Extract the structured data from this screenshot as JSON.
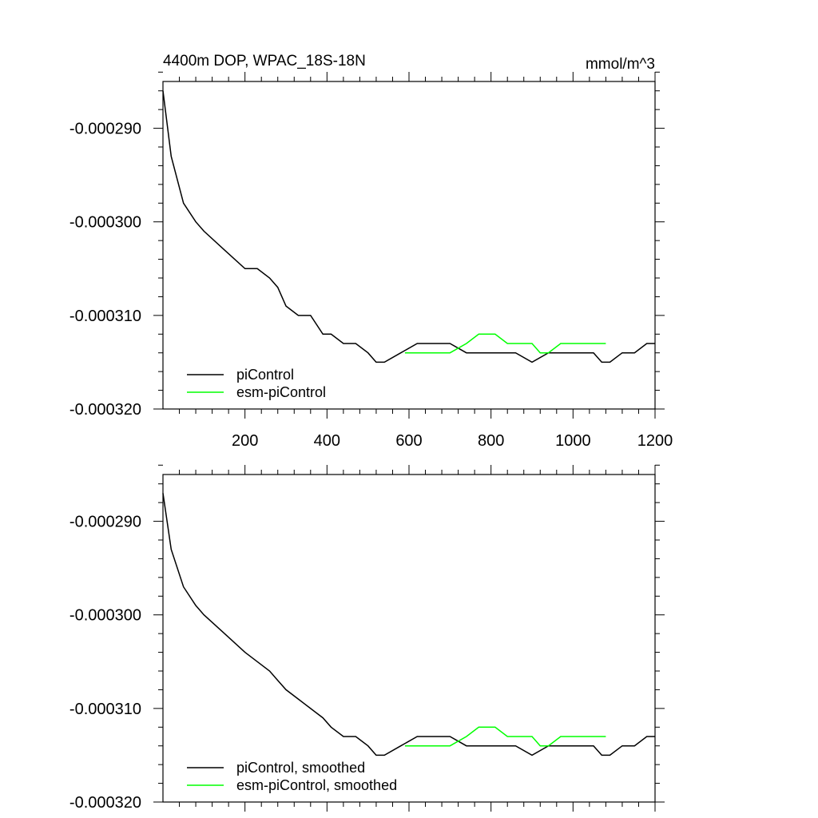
{
  "chart_data": [
    {
      "type": "line",
      "title": "4400m DOP, WPAC_18S-18N",
      "units": "mmol/m^3",
      "xlim": [
        0,
        1200
      ],
      "ylim": [
        -0.00032,
        -0.000285
      ],
      "x_ticks": [
        200,
        400,
        600,
        800,
        1000,
        1200
      ],
      "x_tick_labels": [
        "200",
        "400",
        "600",
        "800",
        "1000",
        "1200"
      ],
      "y_ticks": [
        -0.00029,
        -0.0003,
        -0.00031,
        -0.00032
      ],
      "y_tick_labels": [
        "-0.000290",
        "-0.000300",
        "-0.000310",
        "-0.000320"
      ],
      "legend": [
        "piControl",
        "esm-piControl"
      ],
      "series": [
        {
          "name": "piControl",
          "color": "#000000",
          "x": [
            0,
            20,
            50,
            80,
            100,
            150,
            200,
            230,
            260,
            280,
            300,
            330,
            360,
            390,
            410,
            440,
            470,
            500,
            520,
            540,
            580,
            620,
            660,
            700,
            740,
            780,
            820,
            860,
            900,
            940,
            980,
            1020,
            1050,
            1070,
            1090,
            1120,
            1150,
            1180,
            1200
          ],
          "values": [
            -0.000286,
            -0.000293,
            -0.000298,
            -0.0003,
            -0.000301,
            -0.000303,
            -0.000305,
            -0.000305,
            -0.000306,
            -0.000307,
            -0.000309,
            -0.00031,
            -0.00031,
            -0.000312,
            -0.000312,
            -0.000313,
            -0.000313,
            -0.000314,
            -0.000315,
            -0.000315,
            -0.000314,
            -0.000313,
            -0.000313,
            -0.000313,
            -0.000314,
            -0.000314,
            -0.000314,
            -0.000314,
            -0.000315,
            -0.000314,
            -0.000314,
            -0.000314,
            -0.000314,
            -0.000315,
            -0.000315,
            -0.000314,
            -0.000314,
            -0.000313,
            -0.000313
          ]
        },
        {
          "name": "esm-piControl",
          "color": "#00ff00",
          "x": [
            590,
            620,
            660,
            700,
            740,
            770,
            790,
            810,
            840,
            870,
            900,
            920,
            940,
            970,
            1000,
            1030,
            1060,
            1080
          ],
          "values": [
            -0.000314,
            -0.000314,
            -0.000314,
            -0.000314,
            -0.000313,
            -0.000312,
            -0.000312,
            -0.000312,
            -0.000313,
            -0.000313,
            -0.000313,
            -0.000314,
            -0.000314,
            -0.000313,
            -0.000313,
            -0.000313,
            -0.000313,
            -0.000313
          ]
        }
      ]
    },
    {
      "type": "line",
      "xlim": [
        0,
        1200
      ],
      "ylim": [
        -0.00032,
        -0.000285
      ],
      "x_ticks": [
        200,
        400,
        600,
        800,
        1000,
        1200
      ],
      "y_ticks": [
        -0.00029,
        -0.0003,
        -0.00031,
        -0.00032
      ],
      "y_tick_labels": [
        "-0.000290",
        "-0.000300",
        "-0.000310",
        "-0.000320"
      ],
      "legend": [
        "piControl, smoothed",
        "esm-piControl, smoothed"
      ],
      "series": [
        {
          "name": "piControl, smoothed",
          "color": "#000000",
          "x": [
            0,
            20,
            50,
            80,
            100,
            150,
            200,
            230,
            260,
            280,
            300,
            330,
            360,
            390,
            410,
            440,
            470,
            500,
            520,
            540,
            580,
            620,
            660,
            700,
            740,
            780,
            820,
            860,
            900,
            940,
            980,
            1020,
            1050,
            1070,
            1090,
            1120,
            1150,
            1180,
            1200
          ],
          "values": [
            -0.000287,
            -0.000293,
            -0.000297,
            -0.000299,
            -0.0003,
            -0.000302,
            -0.000304,
            -0.000305,
            -0.000306,
            -0.000307,
            -0.000308,
            -0.000309,
            -0.00031,
            -0.000311,
            -0.000312,
            -0.000313,
            -0.000313,
            -0.000314,
            -0.000315,
            -0.000315,
            -0.000314,
            -0.000313,
            -0.000313,
            -0.000313,
            -0.000314,
            -0.000314,
            -0.000314,
            -0.000314,
            -0.000315,
            -0.000314,
            -0.000314,
            -0.000314,
            -0.000314,
            -0.000315,
            -0.000315,
            -0.000314,
            -0.000314,
            -0.000313,
            -0.000313
          ]
        },
        {
          "name": "esm-piControl, smoothed",
          "color": "#00ff00",
          "x": [
            590,
            620,
            660,
            700,
            740,
            770,
            790,
            810,
            840,
            870,
            900,
            920,
            940,
            970,
            1000,
            1030,
            1060,
            1080
          ],
          "values": [
            -0.000314,
            -0.000314,
            -0.000314,
            -0.000314,
            -0.000313,
            -0.000312,
            -0.000312,
            -0.000312,
            -0.000313,
            -0.000313,
            -0.000313,
            -0.000314,
            -0.000314,
            -0.000313,
            -0.000313,
            -0.000313,
            -0.000313,
            -0.000313
          ]
        }
      ]
    }
  ]
}
